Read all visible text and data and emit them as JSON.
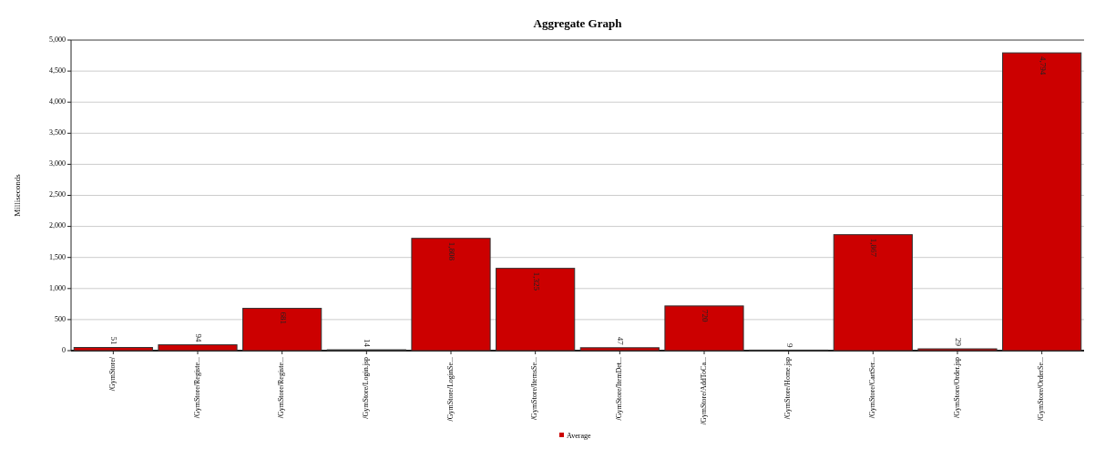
{
  "chart_data": {
    "type": "bar",
    "title": "Aggregate Graph",
    "ylabel": "Milliseconds",
    "categories": [
      "/GymStore/",
      "/GymStore/Registe...",
      "/GymStore/Registe...",
      "/GymStore/Login.jsp",
      "/GymStore/LoginSe...",
      "/GymStore/ItemsSe...",
      "/GymStore/ItemDet...",
      "/GymStore/AddToCa...",
      "/GymStore/Home.jsp",
      "/GymStore/CartSer...",
      "/GymStore/Order.jsp",
      "/GymStore/OrderSe..."
    ],
    "series": [
      {
        "name": "Average",
        "color": "#cc0000",
        "values": [
          51,
          94,
          681,
          14,
          1808,
          1325,
          47,
          720,
          9,
          1867,
          29,
          4794
        ]
      }
    ],
    "value_labels": [
      "51",
      "94",
      "681",
      "14",
      "1,808",
      "1,325",
      "47",
      "720",
      "9",
      "1,867",
      "29",
      "4,794"
    ],
    "ylim": [
      0,
      5000
    ],
    "yticks": [
      {
        "value": 0,
        "label": "0"
      },
      {
        "value": 500,
        "label": "500"
      },
      {
        "value": 1000,
        "label": "1,000"
      },
      {
        "value": 1500,
        "label": "1,500"
      },
      {
        "value": 2000,
        "label": "2,000"
      },
      {
        "value": 2500,
        "label": "2,500"
      },
      {
        "value": 3000,
        "label": "3,000"
      },
      {
        "value": 3500,
        "label": "3,500"
      },
      {
        "value": 4000,
        "label": "4,000"
      },
      {
        "value": 4500,
        "label": "4,500"
      },
      {
        "value": 5000,
        "label": "5,000"
      }
    ],
    "grid": "y",
    "legend": "bottom"
  }
}
